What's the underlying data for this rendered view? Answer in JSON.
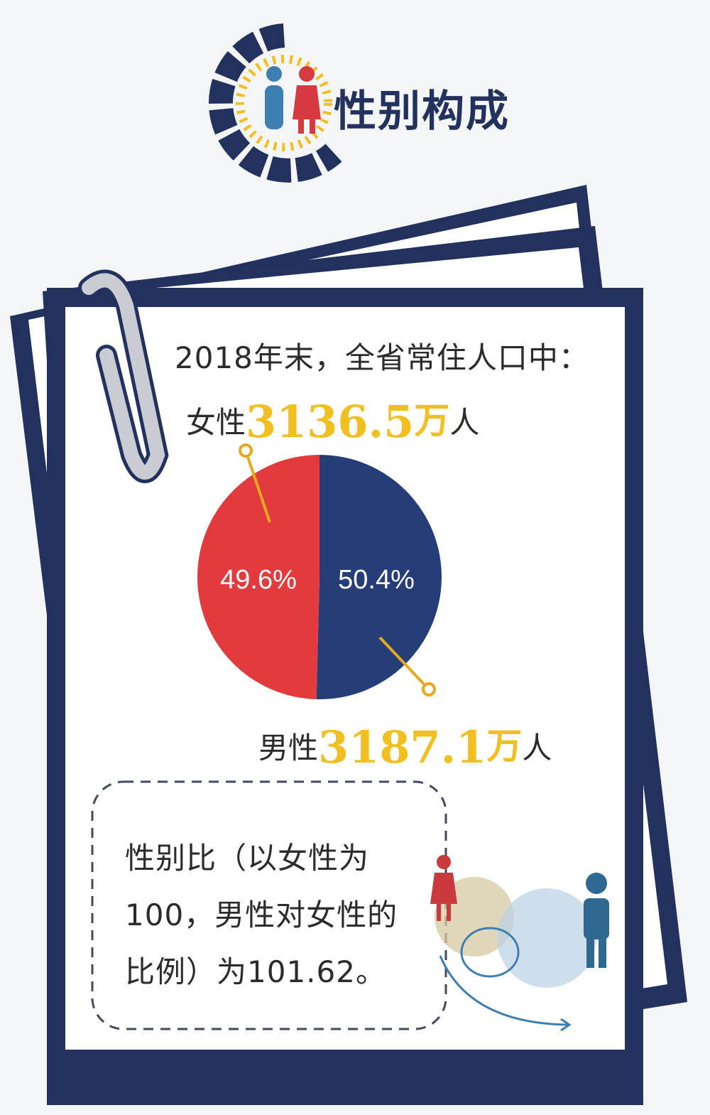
{
  "header": {
    "title": "性别构成"
  },
  "intro": "2018年末，全省常住人口中：",
  "female": {
    "prefix": "女性",
    "value": "3136.5",
    "unit": "万",
    "suffix": "人"
  },
  "male": {
    "prefix": "男性",
    "value": "3187.1",
    "unit": "万",
    "suffix": "人"
  },
  "ratio_text": "性别比（以女性为100，男性对女性的比例）为101.62。",
  "colors": {
    "navy": "#22315e",
    "female": "#e23a3d",
    "male": "#253e78",
    "accent": "#f2bf22"
  },
  "icons": [
    "gender-logo-icon",
    "paperclip-icon",
    "woman-figure-icon",
    "man-figure-icon"
  ],
  "chart_data": {
    "type": "pie",
    "slices": [
      {
        "name": "女性",
        "value": 49.6,
        "label": "49.6%",
        "color": "#e23a3d"
      },
      {
        "name": "男性",
        "value": 50.4,
        "label": "50.4%",
        "color": "#253e78"
      }
    ],
    "start": "top",
    "direction": "clockwise-for-male"
  }
}
